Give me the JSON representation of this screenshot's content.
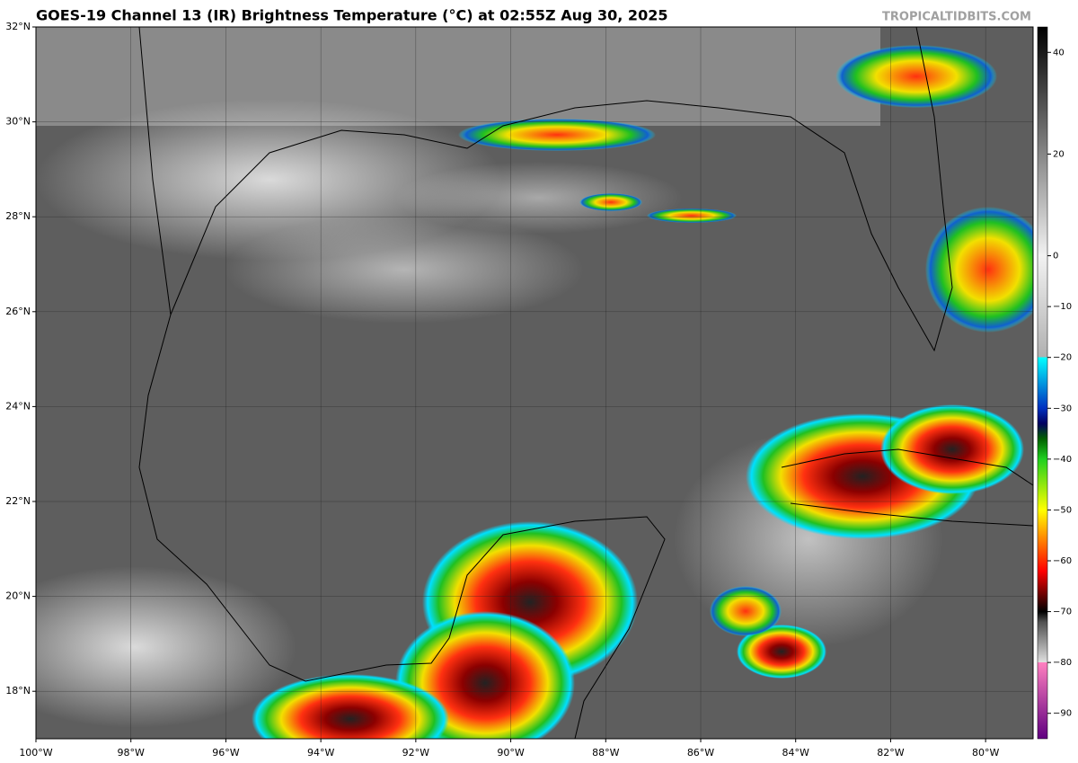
{
  "header": {
    "title": "GOES-19 Channel 13 (IR) Brightness Temperature (°C) at 02:55Z Aug 30, 2025",
    "credit": "TROPICALTIDBITS.COM"
  },
  "map": {
    "lon_range": [
      -100,
      -79
    ],
    "lat_range": [
      17,
      32
    ],
    "lat_ticks": [
      {
        "value": 32,
        "label": "32°N"
      },
      {
        "value": 30,
        "label": "30°N"
      },
      {
        "value": 28,
        "label": "28°N"
      },
      {
        "value": 26,
        "label": "26°N"
      },
      {
        "value": 24,
        "label": "24°N"
      },
      {
        "value": 22,
        "label": "22°N"
      },
      {
        "value": 20,
        "label": "20°N"
      },
      {
        "value": 18,
        "label": "18°N"
      }
    ],
    "lon_ticks": [
      {
        "value": -100,
        "label": "100°W"
      },
      {
        "value": -98,
        "label": "98°W"
      },
      {
        "value": -96,
        "label": "96°W"
      },
      {
        "value": -94,
        "label": "94°W"
      },
      {
        "value": -92,
        "label": "92°W"
      },
      {
        "value": -90,
        "label": "90°W"
      },
      {
        "value": -88,
        "label": "88°W"
      },
      {
        "value": -86,
        "label": "86°W"
      },
      {
        "value": -84,
        "label": "84°W"
      },
      {
        "value": -82,
        "label": "82°W"
      },
      {
        "value": -80,
        "label": "80°W"
      }
    ]
  },
  "colorbar": {
    "range": [
      -95,
      45
    ],
    "ticks": [
      {
        "value": 40,
        "label": "40"
      },
      {
        "value": 20,
        "label": "20"
      },
      {
        "value": 0,
        "label": "0"
      },
      {
        "value": -10,
        "label": "−10"
      },
      {
        "value": -20,
        "label": "−20"
      },
      {
        "value": -30,
        "label": "−30"
      },
      {
        "value": -40,
        "label": "−40"
      },
      {
        "value": -50,
        "label": "−50"
      },
      {
        "value": -60,
        "label": "−60"
      },
      {
        "value": -70,
        "label": "−70"
      },
      {
        "value": -80,
        "label": "−80"
      },
      {
        "value": -90,
        "label": "−90"
      }
    ]
  }
}
